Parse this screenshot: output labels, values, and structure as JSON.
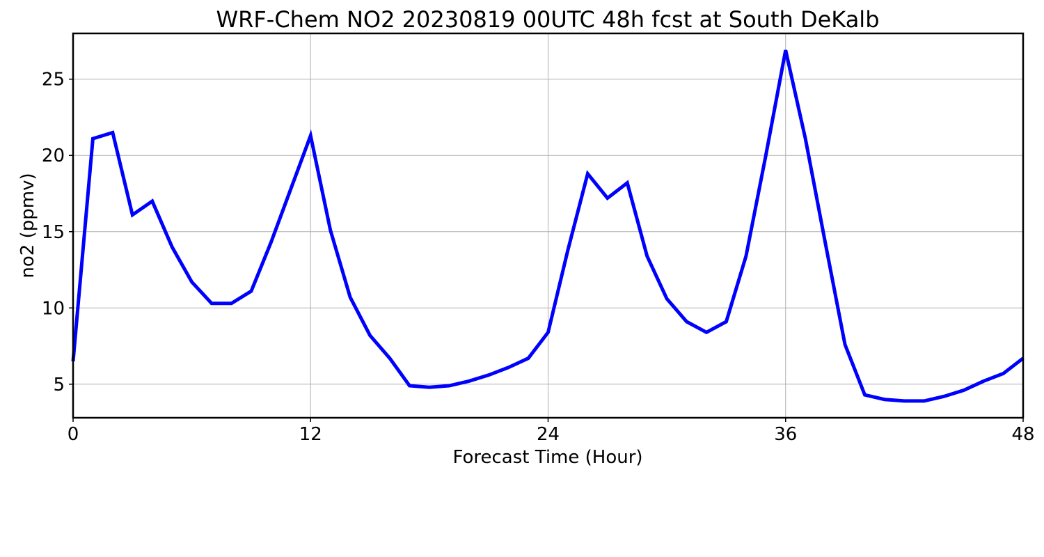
{
  "chart_data": {
    "type": "line",
    "title": "WRF-Chem NO2  20230819 00UTC 48h fcst at South DeKalb",
    "xlabel": "Forecast Time (Hour)",
    "ylabel": "no2  (ppmv)",
    "xlim": [
      0,
      48
    ],
    "ylim": [
      2.8,
      28.0
    ],
    "xticks": [
      0,
      12,
      24,
      36,
      48
    ],
    "yticks": [
      5,
      10,
      15,
      20,
      25
    ],
    "grid": true,
    "series": [
      {
        "color": "#0000ff",
        "x": [
          0,
          1,
          2,
          3,
          4,
          5,
          6,
          7,
          8,
          9,
          10,
          11,
          12,
          13,
          14,
          15,
          16,
          17,
          18,
          19,
          20,
          21,
          22,
          23,
          24,
          25,
          26,
          27,
          28,
          29,
          30,
          31,
          32,
          33,
          34,
          35,
          36,
          37,
          38,
          39,
          40,
          41,
          42,
          43,
          44,
          45,
          46,
          47,
          48
        ],
        "values": [
          6.5,
          21.1,
          21.5,
          16.1,
          17.0,
          14.0,
          11.7,
          10.3,
          10.3,
          11.1,
          14.3,
          17.8,
          21.3,
          15.1,
          10.7,
          8.2,
          6.7,
          4.9,
          4.8,
          4.9,
          5.2,
          5.6,
          6.1,
          6.7,
          8.4,
          13.8,
          18.8,
          17.2,
          18.2,
          13.4,
          10.6,
          9.1,
          8.4,
          9.1,
          13.4,
          20.0,
          26.9,
          21.1,
          14.3,
          7.6,
          4.3,
          4.0,
          3.9,
          3.9,
          4.2,
          4.6,
          5.2,
          5.7,
          6.7
        ]
      }
    ]
  }
}
